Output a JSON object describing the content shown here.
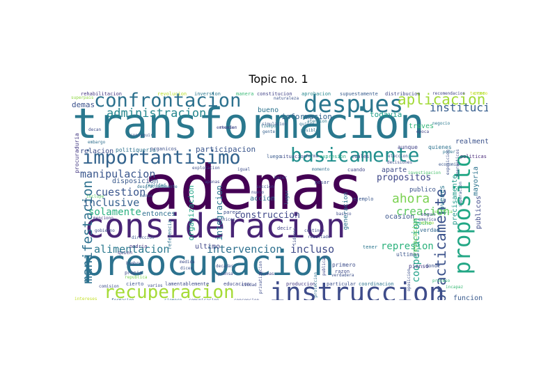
{
  "title": "Topic no. 1",
  "words": [
    {
      "t": "ademas",
      "c": "#440154"
    },
    {
      "t": "transformacion",
      "c": "#2a788e"
    },
    {
      "t": "consideracion",
      "c": "#482475"
    },
    {
      "t": "preocupacion",
      "c": "#2c728e"
    },
    {
      "t": "instruccion",
      "c": "#3e4c8a"
    },
    {
      "t": "proposito",
      "c": "#22a785"
    },
    {
      "t": "despues",
      "c": "#2a768e"
    },
    {
      "t": "confrontacion",
      "c": "#2c718e"
    },
    {
      "t": "basicamente",
      "c": "#218f8d"
    },
    {
      "t": "importantisimo",
      "c": "#33638d"
    },
    {
      "t": "recuperacion",
      "c": "#a5db36"
    },
    {
      "t": "aplicacion",
      "c": "#a2da37"
    },
    {
      "t": "practicamente",
      "c": "#3b528b"
    },
    {
      "t": "administracion",
      "c": "#24868e"
    },
    {
      "t": "manifestacion",
      "c": "#2d708e"
    },
    {
      "t": "alimentacion",
      "c": "#2a788e"
    },
    {
      "t": "intervencion",
      "c": "#2d708e"
    },
    {
      "t": "incluso",
      "c": "#3e4a89"
    },
    {
      "t": "manipulacion",
      "c": "#39568c"
    },
    {
      "t": "institucion",
      "c": "#365d8d"
    },
    {
      "t": "ahora",
      "c": "#7ad151"
    },
    {
      "t": "creacion",
      "c": "#5ec962"
    },
    {
      "t": "represion",
      "c": "#2db27d"
    },
    {
      "t": "cooperacion",
      "c": "#1fa187"
    },
    {
      "t": "propositos",
      "c": "#3f4889"
    },
    {
      "t": "solamente",
      "c": "#29af7f"
    },
    {
      "t": "cuestion",
      "c": "#39558c"
    },
    {
      "t": "inclusive",
      "c": "#35608d"
    },
    {
      "t": "construccion",
      "c": "#3f4788"
    },
    {
      "t": "integracion",
      "c": "#2a768e"
    },
    {
      "t": "organizacion",
      "c": "#20a386"
    },
    {
      "t": "participacion",
      "c": "#39558c"
    },
    {
      "t": "demas",
      "c": "#3b518b"
    },
    {
      "t": "informacion",
      "c": "#33638d"
    },
    {
      "t": "todavia",
      "c": "#1f9e89"
    },
    {
      "t": "relacion",
      "c": "#3d4e8a"
    },
    {
      "t": "publicos",
      "c": "#3e4989"
    },
    {
      "t": "precisamente",
      "c": "#1f9a8a"
    },
    {
      "t": "mayoria",
      "c": "#2c738e"
    },
    {
      "t": "jovenes",
      "c": "#2a768e"
    },
    {
      "t": "realmente",
      "c": "#3b528b"
    },
    {
      "t": "bueno",
      "c": "#2c738e"
    },
    {
      "t": "funcion",
      "c": "#38598c"
    },
    {
      "t": "aparte",
      "c": "#3e4c8a"
    },
    {
      "t": "ultimo",
      "c": "#404688"
    },
    {
      "t": "entonces",
      "c": "#2e6e8e"
    },
    {
      "t": "disposicion",
      "c": "#38588c"
    },
    {
      "t": "accion",
      "c": "#2e6d8e"
    },
    {
      "t": "ocasion",
      "c": "#3a548c"
    },
    {
      "t": "publico",
      "c": "#3a538b"
    },
    {
      "t": "revocacion",
      "c": "#6ccd5a"
    },
    {
      "t": "generacion",
      "c": "#2c728e"
    },
    {
      "t": "traves",
      "c": "#35b779"
    },
    {
      "t": "aunque",
      "c": "#404387"
    },
    {
      "t": "quienes",
      "c": "#2c718e"
    },
    {
      "t": "procuraduria",
      "c": "#443983"
    },
    {
      "t": "politiqueria",
      "c": "#2c718e"
    },
    {
      "t": "organicos",
      "c": "#3c4f8a"
    },
    {
      "t": "rehabilitacion",
      "c": "#453781"
    },
    {
      "t": "revolucion",
      "c": "#b8de29"
    },
    {
      "t": "inversion",
      "c": "#2a788e"
    },
    {
      "t": "manera",
      "c": "#3aba76"
    },
    {
      "t": "constitucion",
      "c": "#414287"
    },
    {
      "t": "aprobacion",
      "c": "#24868e"
    },
    {
      "t": "supuestamente",
      "c": "#375b8d"
    },
    {
      "t": "distribucion",
      "c": "#3f4788"
    },
    {
      "t": "recomendacion",
      "c": "#414487"
    },
    {
      "t": "tercero",
      "c": "#d2e21b"
    },
    {
      "t": "expresion",
      "c": "#22a884"
    },
    {
      "t": "cuales",
      "c": "#3f4788"
    },
    {
      "t": "politicas",
      "c": "#482878"
    },
    {
      "t": "situacion",
      "c": "#3e4989"
    },
    {
      "t": "luego",
      "c": "#38598c"
    },
    {
      "t": "verdad",
      "c": "#31688e"
    },
    {
      "t": "hecho",
      "c": "#2fb47c"
    },
    {
      "t": "ultimos",
      "c": "#3a548c"
    },
    {
      "t": "donde",
      "c": "#3b518b"
    },
    {
      "t": "coordinacion",
      "c": "#2c728e"
    },
    {
      "t": "particular",
      "c": "#3c4f8a"
    },
    {
      "t": "produccion",
      "c": "#443983"
    },
    {
      "t": "educacion",
      "c": "#3f4889"
    },
    {
      "t": "lamentablemente",
      "c": "#3e4c8a"
    },
    {
      "t": "cierto",
      "c": "#3b528b"
    },
    {
      "t": "propio",
      "c": "#3e4a89"
    },
    {
      "t": "quien",
      "c": "#404387"
    },
    {
      "t": "podria",
      "c": "#453882"
    },
    {
      "t": "formacion",
      "c": "#355f8d"
    },
    {
      "t": "siempre",
      "c": "#31688e"
    },
    {
      "t": "comunicacion",
      "c": "#3c508b"
    },
    {
      "t": "concepcion",
      "c": "#3e4a89"
    },
    {
      "t": "intereses",
      "c": "#c2df23"
    },
    {
      "t": "primero",
      "c": "#3d4d8a"
    },
    {
      "t": "pienso",
      "c": "#443b84"
    },
    {
      "t": "tener",
      "c": "#2a768e"
    },
    {
      "t": "menciono",
      "c": "#453882"
    },
    {
      "t": "desgraciadamente",
      "c": "#2e6e8e"
    },
    {
      "t": "realidad",
      "c": "#2c738e"
    },
    {
      "t": "parece",
      "c": "#3d4e8a"
    },
    {
      "t": "ejemplo",
      "c": "#39568c"
    },
    {
      "t": "cuando",
      "c": "#404688"
    },
    {
      "t": "pesar",
      "c": "#3e4c8a"
    },
    {
      "t": "lugar",
      "c": "#2c738e"
    },
    {
      "t": "menos",
      "c": "#38598c"
    },
    {
      "t": "decir",
      "c": "#404387"
    },
    {
      "t": "razon",
      "c": "#3e4989"
    },
    {
      "t": "referencia",
      "c": "#2c718e"
    },
    {
      "t": "segun",
      "c": "#3d4d8a"
    },
    {
      "t": "superacion",
      "c": "#355f8d"
    },
    {
      "t": "investigacion",
      "c": "#4ac16d"
    },
    {
      "t": "oposicion",
      "c": "#3c508b"
    },
    {
      "t": "publicas",
      "c": "#3f4788"
    },
    {
      "t": "privatizacion",
      "c": "#3e4c8a"
    },
    {
      "t": "continua",
      "c": "#3f4889"
    },
    {
      "t": "resultado",
      "c": "#3e4c8a"
    },
    {
      "t": "decan",
      "c": "#3e4c8a"
    },
    {
      "t": "embargo",
      "c": "#2e6e8e"
    },
    {
      "t": "conseguir",
      "c": "#39568c"
    },
    {
      "t": "entender",
      "c": "#3f4889"
    },
    {
      "t": "tiempo",
      "c": "#2a788e"
    },
    {
      "t": "gente",
      "c": "#35608d"
    },
    {
      "t": "posible",
      "c": "#2c728e"
    },
    {
      "t": "atencion",
      "c": "#2a788e"
    },
    {
      "t": "quiere",
      "c": "#2e6e8e"
    },
    {
      "t": "forma",
      "c": "#3d4e8a"
    },
    {
      "t": "eleccion",
      "c": "#3b528b"
    },
    {
      "t": "poder",
      "c": "#2c738e"
    },
    {
      "t": "economia",
      "c": "#39558c"
    },
    {
      "t": "decisiones",
      "c": "#3e4c8a"
    },
    {
      "t": "explotacion",
      "c": "#3c4f8a"
    },
    {
      "t": "hacer",
      "c": "#3e4a89"
    },
    {
      "t": "igual",
      "c": "#3d4e8a"
    },
    {
      "t": "momento",
      "c": "#2e6e8e"
    },
    {
      "t": "apenas",
      "c": "#3f4889"
    },
    {
      "t": "seccion",
      "c": "#3e4c8a"
    },
    {
      "t": "nuevo",
      "c": "#3e4989"
    },
    {
      "t": "tecnicos",
      "c": "#3e4c8a"
    },
    {
      "t": "dicen",
      "c": "#3b528b"
    },
    {
      "t": "decadas",
      "c": "#3c508b"
    },
    {
      "t": "piensa",
      "c": "#3e4c8a"
    },
    {
      "t": "mismas",
      "c": "#414487"
    },
    {
      "t": "ciudad",
      "c": "#3e4a89"
    },
    {
      "t": "verdadera",
      "c": "#3c4f8a"
    },
    {
      "t": "proteccion",
      "c": "#2e6e8e"
    },
    {
      "t": "simulacion",
      "c": "#38598c"
    },
    {
      "t": "reunion",
      "c": "#3f4889"
    },
    {
      "t": "medida",
      "c": "#3e4c8a"
    },
    {
      "t": "naturaleza",
      "c": "#3b528b"
    },
    {
      "t": "basico",
      "c": "#3e4c8a"
    },
    {
      "t": "lideres",
      "c": "#3d4e8a"
    },
    {
      "t": "gobierno",
      "c": "#3e4c8a"
    },
    {
      "t": "direccion",
      "c": "#3b528b"
    },
    {
      "t": "hombre",
      "c": "#3c508b"
    },
    {
      "t": "comision",
      "c": "#3d4d8a"
    },
    {
      "t": "varios",
      "c": "#3e4c8a"
    },
    {
      "t": "republica",
      "c": "#7ad151"
    },
    {
      "t": "incluye",
      "c": "#5ec962"
    },
    {
      "t": "mismo",
      "c": "#95d840"
    },
    {
      "t": "superpais",
      "c": "#8fd744"
    },
    {
      "t": "epoca",
      "c": "#414487"
    },
    {
      "t": "negocio",
      "c": "#2a788e"
    },
    {
      "t": "proceso",
      "c": "#35b779"
    },
    {
      "t": "incapaz",
      "c": "#3aba76"
    },
    {
      "t": "america",
      "c": "#3e4c8a"
    },
    {
      "t": "exposicion",
      "c": "#3c4f8a"
    },
    {
      "t": "energeticos",
      "c": "#3d4e8a"
    },
    {
      "t": "politica",
      "c": "#6ccd5a"
    },
    {
      "t": "creo",
      "c": "#a2da37"
    }
  ]
}
